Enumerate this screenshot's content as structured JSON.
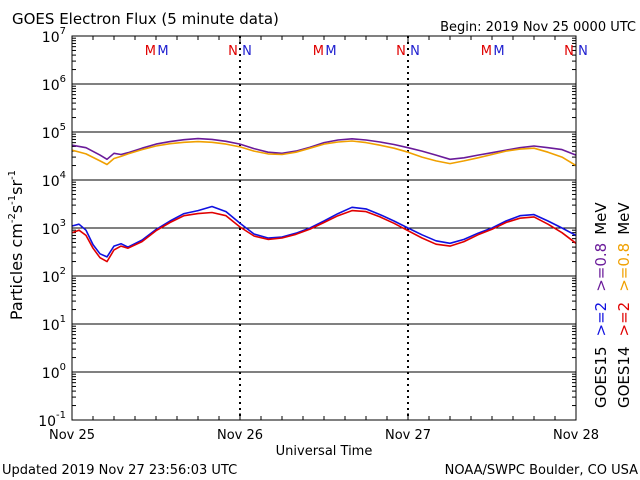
{
  "header": {
    "title": "GOES Electron Flux (5 minute data)",
    "begin": "Begin: 2019 Nov 25 0000 UTC"
  },
  "footer": {
    "updated": "Updated 2019 Nov 27 23:56:03 UTC",
    "credit": "NOAA/SWPC Boulder, CO USA"
  },
  "chart_data": {
    "type": "line",
    "title": "GOES Electron Flux (5 minute data)",
    "xlabel": "Universal Time",
    "ylabel_main": "Particles cm",
    "ylabel_exps": [
      "-2",
      "-1",
      "-1"
    ],
    "ylabel_parts": [
      "s",
      "sr"
    ],
    "y_scale": "log",
    "ylim": [
      0.1,
      10000000
    ],
    "xlim": [
      0,
      72
    ],
    "x_unit": "hours since 2019 Nov 25 0000 UTC",
    "x_ticks": [
      {
        "x": 0,
        "label": "Nov 25"
      },
      {
        "x": 24,
        "label": "Nov 26"
      },
      {
        "x": 48,
        "label": "Nov 27"
      },
      {
        "x": 72,
        "label": "Nov 28"
      }
    ],
    "y_ticks": [
      {
        "base": "10",
        "exp": "-1",
        "value": 0.1
      },
      {
        "base": "10",
        "exp": "0",
        "value": 1
      },
      {
        "base": "10",
        "exp": "1",
        "value": 10
      },
      {
        "base": "10",
        "exp": "2",
        "value": 100
      },
      {
        "base": "10",
        "exp": "3",
        "value": 1000
      },
      {
        "base": "10",
        "exp": "4",
        "value": 10000
      },
      {
        "base": "10",
        "exp": "5",
        "value": 100000
      },
      {
        "base": "10",
        "exp": "6",
        "value": 1000000
      },
      {
        "base": "10",
        "exp": "7",
        "value": 10000000
      }
    ],
    "threshold": {
      "value": 1000,
      "style": "dashed"
    },
    "markers": [
      {
        "label": "M",
        "color": "#e00000",
        "x": 11.2
      },
      {
        "label": "M",
        "color": "#2020d0",
        "x": 13.0
      },
      {
        "label": "N",
        "color": "#e00000",
        "x": 23.0
      },
      {
        "label": "N",
        "color": "#2020d0",
        "x": 25.0
      },
      {
        "label": "M",
        "color": "#e00000",
        "x": 35.2
      },
      {
        "label": "M",
        "color": "#2020d0",
        "x": 37.0
      },
      {
        "label": "N",
        "color": "#e00000",
        "x": 47.0
      },
      {
        "label": "N",
        "color": "#2020d0",
        "x": 49.0
      },
      {
        "label": "M",
        "color": "#e00000",
        "x": 59.2
      },
      {
        "label": "M",
        "color": "#2020d0",
        "x": 61.0
      },
      {
        "label": "N",
        "color": "#e00000",
        "x": 71.0
      },
      {
        "label": "N",
        "color": "#2020d0",
        "x": 73.0
      }
    ],
    "series": [
      {
        "legend": "GOES15 >=0.8 MeV",
        "color": "#6a1b9a",
        "x": [
          0,
          2,
          4,
          5,
          6,
          7,
          8,
          10,
          12,
          14,
          16,
          18,
          20,
          22,
          24,
          26,
          28,
          30,
          32,
          34,
          36,
          38,
          40,
          42,
          44,
          46,
          48,
          50,
          52,
          54,
          56,
          58,
          60,
          62,
          64,
          66,
          68,
          70,
          72
        ],
        "values": [
          53000,
          47000,
          33000,
          27000,
          36000,
          34000,
          37000,
          46000,
          56000,
          63000,
          69000,
          73000,
          70000,
          64000,
          56000,
          45000,
          38000,
          36000,
          40000,
          48000,
          60000,
          68000,
          72000,
          68000,
          62000,
          55000,
          47000,
          40000,
          33000,
          27000,
          29000,
          33000,
          37000,
          42000,
          47000,
          51000,
          47000,
          43000,
          33000
        ]
      },
      {
        "legend": "GOES14 >=0.8 MeV",
        "color": "#f0a000",
        "x": [
          0,
          2,
          4,
          5,
          6,
          7,
          8,
          10,
          12,
          14,
          16,
          18,
          20,
          22,
          24,
          26,
          28,
          30,
          32,
          34,
          36,
          38,
          40,
          42,
          44,
          46,
          48,
          50,
          52,
          54,
          56,
          58,
          60,
          62,
          64,
          66,
          68,
          70,
          72
        ],
        "values": [
          42000,
          35000,
          25000,
          21000,
          28000,
          31000,
          35000,
          43000,
          51000,
          57000,
          61000,
          63000,
          61000,
          56000,
          49000,
          40000,
          35000,
          34000,
          38000,
          46000,
          56000,
          62000,
          65000,
          60000,
          53000,
          46000,
          38000,
          30000,
          25000,
          22000,
          25000,
          29000,
          34000,
          40000,
          44000,
          46000,
          38000,
          30000,
          20000
        ]
      },
      {
        "legend": "GOES15 >=2 MeV",
        "color": "#1010e0",
        "x": [
          0,
          1,
          2,
          3,
          4,
          5,
          6,
          7,
          8,
          10,
          12,
          14,
          16,
          18,
          20,
          22,
          24,
          26,
          28,
          30,
          32,
          34,
          36,
          38,
          40,
          42,
          44,
          46,
          48,
          50,
          52,
          54,
          56,
          58,
          60,
          62,
          64,
          66,
          68,
          70,
          72
        ],
        "values": [
          1100,
          1200,
          900,
          450,
          290,
          250,
          420,
          470,
          400,
          560,
          930,
          1400,
          2000,
          2300,
          2800,
          2200,
          1250,
          750,
          620,
          650,
          780,
          1000,
          1400,
          2000,
          2700,
          2500,
          1900,
          1400,
          1000,
          720,
          540,
          480,
          580,
          780,
          1000,
          1400,
          1800,
          1900,
          1400,
          1000,
          700
        ]
      },
      {
        "legend": "GOES14 >=2 MeV",
        "color": "#e00000",
        "x": [
          0,
          1,
          2,
          3,
          4,
          5,
          6,
          7,
          8,
          10,
          12,
          14,
          16,
          18,
          20,
          22,
          24,
          26,
          28,
          30,
          32,
          34,
          36,
          38,
          40,
          42,
          44,
          46,
          48,
          50,
          52,
          54,
          56,
          58,
          60,
          62,
          64,
          66,
          68,
          70,
          72
        ],
        "values": [
          800,
          900,
          700,
          380,
          240,
          200,
          350,
          420,
          380,
          520,
          880,
          1300,
          1800,
          2000,
          2100,
          1800,
          1050,
          680,
          580,
          620,
          740,
          950,
          1300,
          1800,
          2300,
          2200,
          1700,
          1250,
          880,
          620,
          460,
          420,
          520,
          720,
          940,
          1300,
          1600,
          1700,
          1200,
          800,
          480
        ]
      }
    ],
    "legend_groups": [
      {
        "name": "GOES15",
        "entries": [
          {
            "text": ">=2",
            "color": "#1010e0"
          },
          {
            "text": ">=0.8",
            "color": "#6a1b9a"
          },
          {
            "text": "MeV",
            "color": "#000000"
          }
        ]
      },
      {
        "name": "GOES14",
        "entries": [
          {
            "text": ">=2",
            "color": "#e00000"
          },
          {
            "text": ">=0.8",
            "color": "#f0a000"
          },
          {
            "text": "MeV",
            "color": "#000000"
          }
        ]
      }
    ]
  }
}
